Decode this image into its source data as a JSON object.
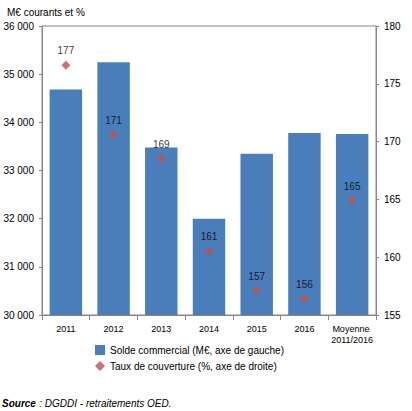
{
  "chart_data": {
    "type": "bar",
    "subtitle": "M€ courants et %",
    "categories": [
      "2011",
      "2012",
      "2013",
      "2014",
      "2015",
      "2016",
      "Moyenne 2011/2016"
    ],
    "series": [
      {
        "name": "Solde commercial (M€, axe de gauche)",
        "type": "bar",
        "color": "#4a7ebb",
        "values": [
          34680,
          35250,
          33480,
          32000,
          33350,
          33780,
          33760
        ]
      },
      {
        "name": "Taux de couverture (%, axe de droite)",
        "type": "scatter",
        "axis": "y2",
        "color": "#c0504d",
        "marker": "diamond",
        "data_labels": true,
        "values": [
          176.6,
          170.6,
          168.5,
          160.5,
          157.1,
          156.4,
          164.9
        ],
        "value_labels": [
          "177",
          "171",
          "169",
          "161",
          "157",
          "156",
          "165"
        ]
      }
    ],
    "ylim": [
      30000,
      36000
    ],
    "yticks": [
      {
        "value": 30000,
        "label": "30 000"
      },
      {
        "value": 31000,
        "label": "31 000"
      },
      {
        "value": 32000,
        "label": "32 000"
      },
      {
        "value": 33000,
        "label": "33 000"
      },
      {
        "value": 34000,
        "label": "34 000"
      },
      {
        "value": 35000,
        "label": "35 000"
      },
      {
        "value": 36000,
        "label": "36 000"
      }
    ],
    "y2lim": [
      155,
      180
    ],
    "y2ticks": [
      155,
      160,
      165,
      170,
      175,
      180
    ],
    "grid": false,
    "legend": "bottom",
    "annotations": [
      {
        "label": "Source",
        "text": ": DGDDI - retraitements OED."
      }
    ]
  }
}
